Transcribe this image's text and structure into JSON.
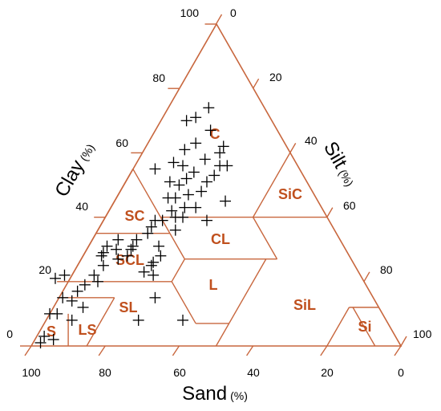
{
  "chart_data": {
    "type": "scatter",
    "subtype": "ternary",
    "title": "",
    "axes": {
      "clay": {
        "label": "Clay",
        "unit": "(%)",
        "ticks": [
          "100",
          "80",
          "60",
          "40",
          "20",
          "0"
        ]
      },
      "silt": {
        "label": "Silt",
        "unit": "(%)",
        "ticks": [
          "0",
          "20",
          "40",
          "60",
          "80",
          "100"
        ]
      },
      "sand": {
        "label": "Sand",
        "unit": "(%)",
        "ticks": [
          "100",
          "80",
          "60",
          "40",
          "20",
          "0"
        ]
      }
    },
    "regions": [
      "C",
      "SiC",
      "SC",
      "CL",
      "SCL",
      "L",
      "SiL",
      "SL",
      "LS",
      "S",
      "Si"
    ],
    "colors": {
      "frame": "#c8673e",
      "region_label": "#c0501e",
      "marker": "#000000"
    },
    "marker": "plus",
    "points": [
      {
        "sand": 15,
        "clay": 74
      },
      {
        "sand": 20,
        "clay": 71
      },
      {
        "sand": 23,
        "clay": 70
      },
      {
        "sand": 18,
        "clay": 67
      },
      {
        "sand": 17,
        "clay": 62
      },
      {
        "sand": 24,
        "clay": 63
      },
      {
        "sand": 28,
        "clay": 61
      },
      {
        "sand": 19,
        "clay": 60
      },
      {
        "sand": 24,
        "clay": 58
      },
      {
        "sand": 21,
        "clay": 56
      },
      {
        "sand": 19,
        "clay": 56
      },
      {
        "sand": 31,
        "clay": 56
      },
      {
        "sand": 33,
        "clay": 57
      },
      {
        "sand": 29,
        "clay": 54
      },
      {
        "sand": 24,
        "clay": 53
      },
      {
        "sand": 27,
        "clay": 51
      },
      {
        "sand": 32,
        "clay": 52
      },
      {
        "sand": 39,
        "clay": 55
      },
      {
        "sand": 37,
        "clay": 51
      },
      {
        "sand": 35,
        "clay": 50
      },
      {
        "sand": 30,
        "clay": 48
      },
      {
        "sand": 25,
        "clay": 45
      },
      {
        "sand": 34,
        "clay": 47
      },
      {
        "sand": 38,
        "clay": 46
      },
      {
        "sand": 40,
        "clay": 46
      },
      {
        "sand": 37,
        "clay": 43
      },
      {
        "sand": 34,
        "clay": 43
      },
      {
        "sand": 41,
        "clay": 42
      },
      {
        "sand": 45,
        "clay": 39
      },
      {
        "sand": 39,
        "clay": 40
      },
      {
        "sand": 41,
        "clay": 40
      },
      {
        "sand": 33,
        "clay": 39
      },
      {
        "sand": 47,
        "clay": 39
      },
      {
        "sand": 49,
        "clay": 37
      },
      {
        "sand": 43,
        "clay": 36
      },
      {
        "sand": 51,
        "clay": 35
      },
      {
        "sand": 55,
        "clay": 33
      },
      {
        "sand": 60,
        "clay": 33
      },
      {
        "sand": 57,
        "clay": 31
      },
      {
        "sand": 58,
        "clay": 30
      },
      {
        "sand": 64,
        "clay": 31
      },
      {
        "sand": 62,
        "clay": 30
      },
      {
        "sand": 66,
        "clay": 29
      },
      {
        "sand": 67,
        "clay": 28
      },
      {
        "sand": 60,
        "clay": 28
      },
      {
        "sand": 63,
        "clay": 27
      },
      {
        "sand": 68,
        "clay": 25
      },
      {
        "sand": 54,
        "clay": 26
      },
      {
        "sand": 55,
        "clay": 25
      },
      {
        "sand": 51,
        "clay": 28
      },
      {
        "sand": 50,
        "clay": 31
      },
      {
        "sand": 56,
        "clay": 22
      },
      {
        "sand": 58,
        "clay": 23
      },
      {
        "sand": 72,
        "clay": 20
      },
      {
        "sand": 72,
        "clay": 22
      },
      {
        "sand": 76,
        "clay": 19
      },
      {
        "sand": 79,
        "clay": 17
      },
      {
        "sand": 80,
        "clay": 22
      },
      {
        "sand": 83,
        "clay": 21
      },
      {
        "sand": 84,
        "clay": 15
      },
      {
        "sand": 82,
        "clay": 14
      },
      {
        "sand": 80,
        "clay": 12
      },
      {
        "sand": 88,
        "clay": 10
      },
      {
        "sand": 85,
        "clay": 8
      },
      {
        "sand": 90,
        "clay": 10
      },
      {
        "sand": 59,
        "clay": 15
      },
      {
        "sand": 55,
        "clay": 8
      },
      {
        "sand": 67,
        "clay": 8
      },
      {
        "sand": 95,
        "clay": 3
      },
      {
        "sand": 93,
        "clay": 2
      },
      {
        "sand": 97,
        "clay": 1
      }
    ]
  }
}
